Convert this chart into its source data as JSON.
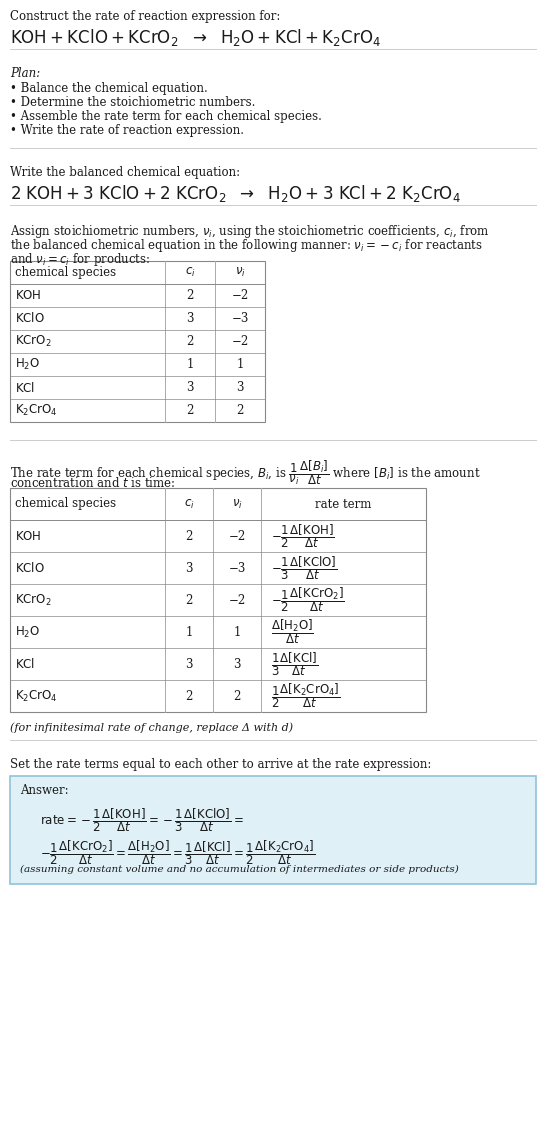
{
  "title_line1": "Construct the rate of reaction expression for:",
  "plan_header": "Plan:",
  "plan_items": [
    "• Balance the chemical equation.",
    "• Determine the stoichiometric numbers.",
    "• Assemble the rate term for each chemical species.",
    "• Write the rate of reaction expression."
  ],
  "balanced_header": "Write the balanced chemical equation:",
  "table1_headers": [
    "chemical species",
    "c_i",
    "ν_i"
  ],
  "table1_rows": [
    [
      "KOH",
      "2",
      "−2"
    ],
    [
      "KClO",
      "3",
      "−3"
    ],
    [
      "KCrO_2",
      "2",
      "−2"
    ],
    [
      "H_2O",
      "1",
      "1"
    ],
    [
      "KCl",
      "3",
      "3"
    ],
    [
      "K_2CrO_4",
      "2",
      "2"
    ]
  ],
  "table2_headers": [
    "chemical species",
    "c_i",
    "ν_i",
    "rate term"
  ],
  "table2_rows": [
    [
      "KOH",
      "2",
      "−2"
    ],
    [
      "KClO",
      "3",
      "−3"
    ],
    [
      "KCrO_2",
      "2",
      "−2"
    ],
    [
      "H_2O",
      "1",
      "1"
    ],
    [
      "KCl",
      "3",
      "3"
    ],
    [
      "K_2CrO_4",
      "2",
      "2"
    ]
  ],
  "infinitesimal_note": "(for infinitesimal rate of change, replace Δ with d)",
  "set_rate_text": "Set the rate terms equal to each other to arrive at the rate expression:",
  "answer_label": "Answer:",
  "answer_box_color": "#dff0f7",
  "answer_border_color": "#90c4d8",
  "disclaimer": "(assuming constant volume and no accumulation of intermediates or side products)",
  "bg_color": "#ffffff",
  "text_color": "#1a1a1a",
  "gray": "#888888",
  "font_size": 9.5,
  "small_font": 8.5
}
